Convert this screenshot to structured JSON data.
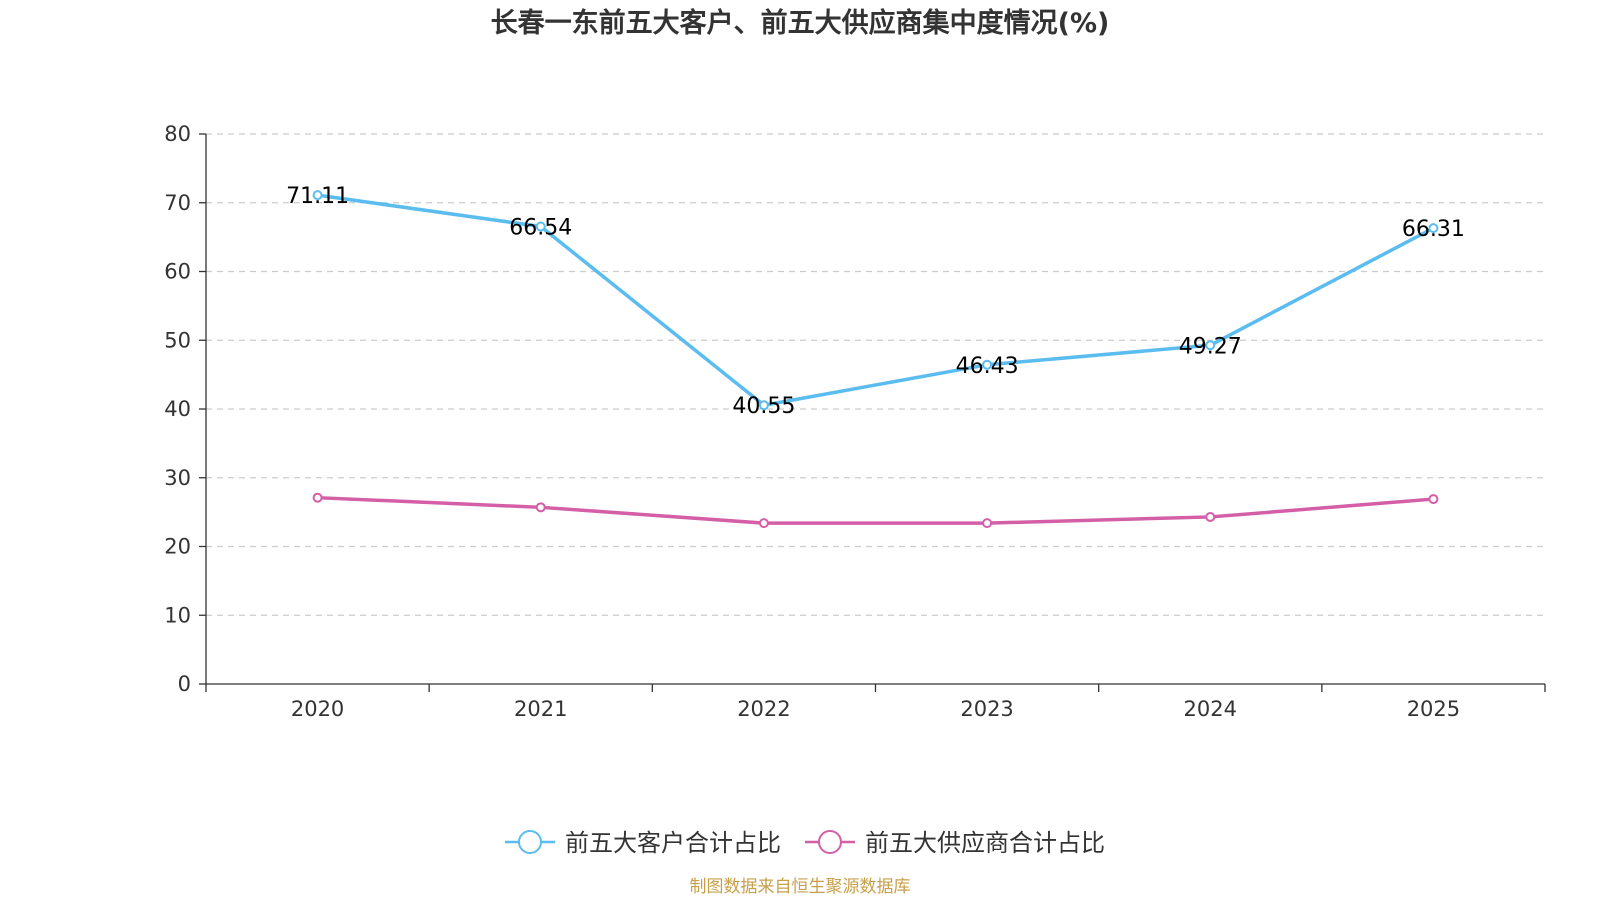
{
  "chart_data": {
    "type": "line",
    "title": "长春一东前五大客户、前五大供应商集中度情况(%)",
    "categories": [
      "2020",
      "2021",
      "2022",
      "2023",
      "2024",
      "2025"
    ],
    "ylim": [
      0,
      80
    ],
    "yticks": [
      "0",
      "10",
      "20",
      "30",
      "40",
      "50",
      "60",
      "70",
      "80"
    ],
    "grid": true,
    "legend_position": "bottom-center",
    "series": [
      {
        "name": "前五大客户合计占比",
        "color": "#5bbcf0",
        "values": [
          71.11,
          66.54,
          40.55,
          46.43,
          49.27,
          66.31
        ],
        "labels": [
          "71.11",
          "66.54",
          "40.55",
          "46.43",
          "49.27",
          "66.31"
        ]
      },
      {
        "name": "前五大供应商合计占比",
        "color": "#d45fa7",
        "values": [
          27.1,
          25.7,
          23.4,
          23.4,
          24.3,
          26.9
        ],
        "labels": []
      }
    ],
    "source": "制图数据来自恒生聚源数据库"
  }
}
